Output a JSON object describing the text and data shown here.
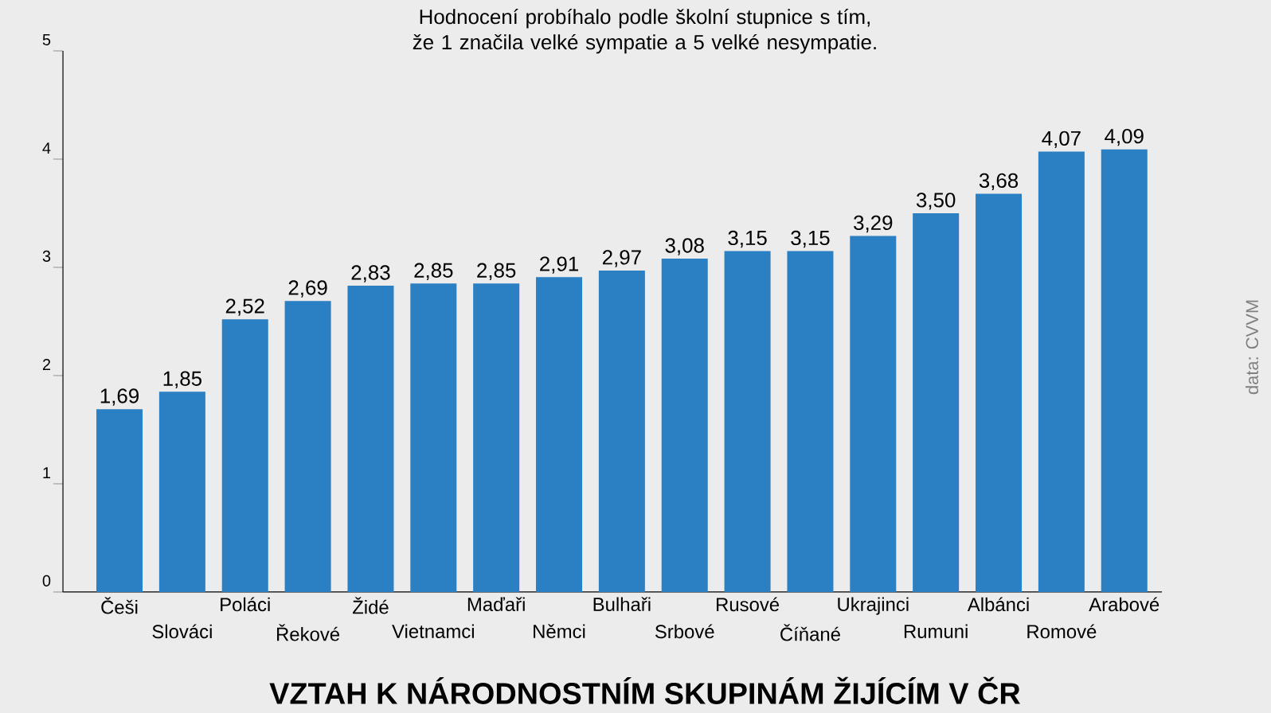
{
  "chart_data": {
    "type": "bar",
    "title": "VZTAH K NÁRODNOSTNÍM SKUPINÁM ŽIJÍCÍM V ČR",
    "subtitle": "Hodnocení probíhalo podle školní stupnice s tím, že 1 značila velké sympatie a 5 velké nesympatie.",
    "annotations": [
      "data: CVVM"
    ],
    "categories": [
      "Češi",
      "Slováci",
      "Poláci",
      "Řekové",
      "Židé",
      "Vietnamci",
      "Maďaři",
      "Němci",
      "Bulhaři",
      "Srbové",
      "Rusové",
      "Číňané",
      "Ukrajinci",
      "Rumuni",
      "Albánci",
      "Romové",
      "Arabové"
    ],
    "values": [
      1.69,
      1.85,
      2.52,
      2.69,
      2.83,
      2.85,
      2.85,
      2.91,
      2.97,
      3.08,
      3.15,
      3.15,
      3.29,
      3.5,
      3.68,
      4.07,
      4.09
    ],
    "value_labels": [
      "1,69",
      "1,85",
      "2,52",
      "2,69",
      "2,83",
      "2,85",
      "2,85",
      "2,91",
      "2,97",
      "3,08",
      "3,15",
      "3,15",
      "3,29",
      "3,50",
      "3,68",
      "4,07",
      "4,09"
    ],
    "color": "#2b7fc3",
    "ylim": [
      0,
      5
    ],
    "yticks": [
      0,
      1,
      2,
      3,
      4,
      5
    ],
    "grid": false
  }
}
